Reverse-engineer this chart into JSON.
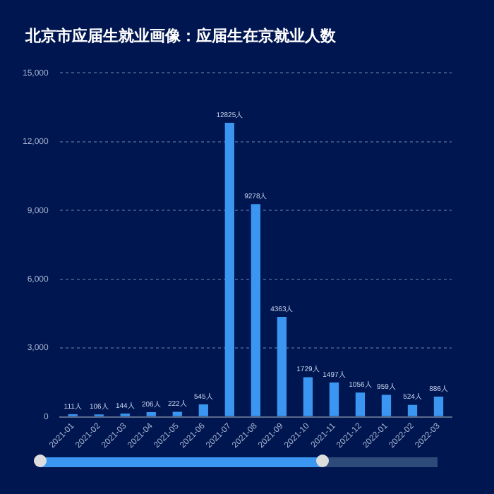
{
  "chart_data": {
    "type": "bar",
    "title": "北京市应届生就业画像：应届生在京就业人数",
    "categories": [
      "2021-01",
      "2021-02",
      "2021-03",
      "2021-04",
      "2021-05",
      "2021-06",
      "2021-07",
      "2021-08",
      "2021-09",
      "2021-10",
      "2021-11",
      "2021-12",
      "2022-01",
      "2022-02",
      "2022-03"
    ],
    "values": [
      111,
      106,
      144,
      206,
      222,
      545,
      12825,
      9278,
      4363,
      1729,
      1497,
      1056,
      959,
      524,
      886
    ],
    "value_labels": [
      "111人",
      "106人",
      "144人",
      "206人",
      "222人",
      "545人",
      "12825人",
      "9278人",
      "4363人",
      "1729人",
      "1497人",
      "1056人",
      "959人",
      "524人",
      "886人"
    ],
    "color": "#3a96f0",
    "ylim": [
      0,
      15000
    ],
    "yticks": [
      0,
      {
        "value": 3000,
        "label": "3,000"
      },
      {
        "value": 6000,
        "label": "6,000"
      },
      {
        "value": 9000,
        "label": "9,000"
      },
      {
        "value": 12000,
        "label": "12,000"
      },
      {
        "value": 15000,
        "label": "15,000"
      }
    ],
    "grid": "y"
  }
}
